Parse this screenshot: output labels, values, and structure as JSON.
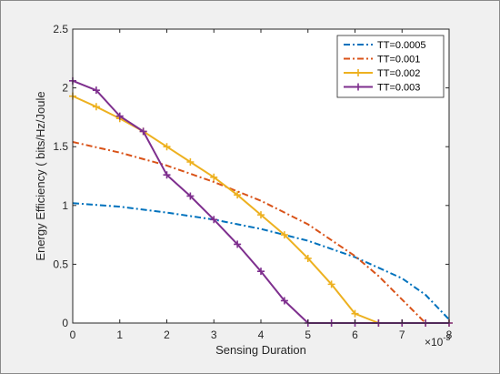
{
  "chart_data": {
    "type": "line",
    "xlabel": "Sensing Duration",
    "ylabel": "Energy Efficiency ( bits/Hz/Joule",
    "x_exponent_label": "×10",
    "x_exponent_power": "-3",
    "xlim": [
      0,
      8
    ],
    "ylim": [
      0,
      2.5
    ],
    "xticks": [
      0,
      1,
      2,
      3,
      4,
      5,
      6,
      7,
      8
    ],
    "yticks": [
      0,
      0.5,
      1,
      1.5,
      2,
      2.5
    ],
    "xtick_labels": [
      "0",
      "1",
      "2",
      "3",
      "4",
      "5",
      "6",
      "7",
      "8"
    ],
    "ytick_labels": [
      "0",
      "0.5",
      "1",
      "1.5",
      "2",
      "2.5"
    ],
    "grid": false,
    "legend_position": "top-right",
    "series": [
      {
        "name": "TT=0.0005",
        "color": "#0072BD",
        "style": "dashdot",
        "marker": "none",
        "x": [
          0,
          1,
          2,
          3,
          4,
          5,
          6,
          7,
          7.5,
          8
        ],
        "y": [
          1.02,
          0.99,
          0.94,
          0.88,
          0.8,
          0.7,
          0.56,
          0.38,
          0.24,
          0.03
        ]
      },
      {
        "name": "TT=0.001",
        "color": "#D95319",
        "style": "dashdot",
        "marker": "none",
        "x": [
          0,
          1,
          2,
          3,
          4,
          5,
          6,
          6.5,
          7,
          7.5,
          8
        ],
        "y": [
          1.54,
          1.45,
          1.34,
          1.2,
          1.04,
          0.84,
          0.57,
          0.4,
          0.2,
          0.0,
          0.0
        ]
      },
      {
        "name": "TT=0.002",
        "color": "#EDB120",
        "style": "solid",
        "marker": "plus",
        "x": [
          0,
          0.5,
          1,
          1.5,
          2,
          2.5,
          3,
          3.5,
          4,
          4.5,
          5,
          5.5,
          6,
          6.5,
          7,
          7.5,
          8
        ],
        "y": [
          1.93,
          1.84,
          1.74,
          1.63,
          1.5,
          1.37,
          1.24,
          1.09,
          0.92,
          0.75,
          0.55,
          0.33,
          0.08,
          0.0,
          0.0,
          0.0,
          0.0
        ]
      },
      {
        "name": "TT=0.003",
        "color": "#7E2F8E",
        "style": "solid",
        "marker": "plus",
        "x": [
          0,
          0.5,
          1,
          1.5,
          2,
          2.5,
          3,
          3.5,
          4,
          4.5,
          5,
          5.5,
          6,
          6.5,
          7,
          7.5,
          8
        ],
        "y": [
          2.06,
          1.98,
          1.76,
          1.63,
          1.26,
          1.08,
          0.88,
          0.67,
          0.44,
          0.19,
          0.0,
          0.0,
          0.0,
          0.0,
          0.0,
          0.0,
          0.0
        ]
      }
    ]
  }
}
